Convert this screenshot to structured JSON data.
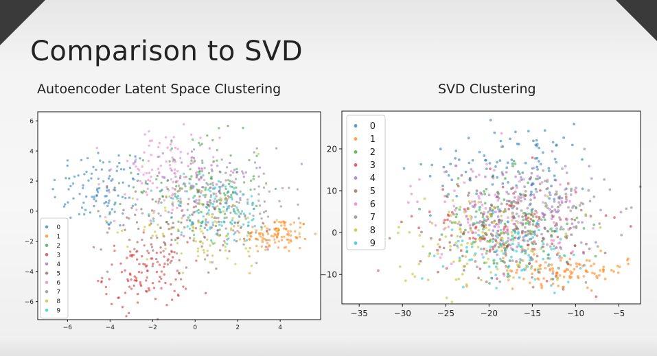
{
  "slide": {
    "title": "Comparison to SVD"
  },
  "colors": [
    "#1f77b4",
    "#ff7f0e",
    "#2ca02c",
    "#d62728",
    "#9467bd",
    "#8c564b",
    "#e377c2",
    "#7f7f7f",
    "#bcbd22",
    "#17becf"
  ],
  "chart_data": [
    {
      "type": "scatter",
      "title": "Autoencoder Latent Space Clustering",
      "xlabel": "",
      "ylabel": "",
      "xlim": [
        -7.4,
        5.9
      ],
      "ylim": [
        -7.2,
        6.6
      ],
      "xticks": [
        -6,
        -4,
        -2,
        0,
        2,
        4
      ],
      "yticks": [
        -6,
        -4,
        -2,
        0,
        2,
        4,
        6
      ],
      "grid": false,
      "legend_position": "lower-left",
      "series": [
        {
          "name": "0",
          "cx": -4.4,
          "cy": 1.5,
          "sx": 1.2,
          "sy": 1.4
        },
        {
          "name": "1",
          "cx": 3.8,
          "cy": -1.6,
          "sx": 0.8,
          "sy": 0.6
        },
        {
          "name": "2",
          "cx": 0.2,
          "cy": 1.8,
          "sx": 1.5,
          "sy": 1.6
        },
        {
          "name": "3",
          "cx": -2.3,
          "cy": -4.2,
          "sx": 1.0,
          "sy": 1.1
        },
        {
          "name": "4",
          "cx": 0.8,
          "cy": 1.0,
          "sx": 1.4,
          "sy": 1.6
        },
        {
          "name": "5",
          "cx": -1.0,
          "cy": -1.0,
          "sx": 1.5,
          "sy": 1.6
        },
        {
          "name": "6",
          "cx": -1.5,
          "cy": 2.5,
          "sx": 1.3,
          "sy": 1.5
        },
        {
          "name": "7",
          "cx": 1.5,
          "cy": 0.5,
          "sx": 1.5,
          "sy": 1.5
        },
        {
          "name": "8",
          "cx": 0.5,
          "cy": -1.0,
          "sx": 1.5,
          "sy": 1.4
        },
        {
          "name": "9",
          "cx": 1.0,
          "cy": 0.0,
          "sx": 1.3,
          "sy": 1.2
        }
      ]
    },
    {
      "type": "scatter",
      "title": "SVD Clustering",
      "xlabel": "",
      "ylabel": "",
      "xlim": [
        -37,
        -2.5
      ],
      "ylim": [
        -17,
        29
      ],
      "xticks": [
        -35,
        -30,
        -25,
        -20,
        -15,
        -10,
        -5
      ],
      "yticks": [
        -10,
        0,
        10,
        20
      ],
      "grid": false,
      "legend_position": "upper-left",
      "series": [
        {
          "name": "0",
          "cx": -17,
          "cy": 16,
          "sx": 4.8,
          "sy": 5.0
        },
        {
          "name": "1",
          "cx": -11,
          "cy": -9,
          "sx": 3.6,
          "sy": 1.8
        },
        {
          "name": "2",
          "cx": -18,
          "cy": 2,
          "sx": 4.5,
          "sy": 6.0
        },
        {
          "name": "3",
          "cx": -18,
          "cy": 2,
          "sx": 5.0,
          "sy": 6.0
        },
        {
          "name": "4",
          "cx": -15,
          "cy": 5,
          "sx": 4.0,
          "sy": 6.0
        },
        {
          "name": "5",
          "cx": -18,
          "cy": 0,
          "sx": 4.5,
          "sy": 5.5
        },
        {
          "name": "6",
          "cx": -19,
          "cy": 5,
          "sx": 5.0,
          "sy": 6.5
        },
        {
          "name": "7",
          "cx": -14,
          "cy": 4,
          "sx": 4.0,
          "sy": 6.0
        },
        {
          "name": "8",
          "cx": -21,
          "cy": -2,
          "sx": 5.0,
          "sy": 5.5
        },
        {
          "name": "9",
          "cx": -17,
          "cy": -4,
          "sx": 4.0,
          "sy": 4.0
        }
      ]
    }
  ]
}
